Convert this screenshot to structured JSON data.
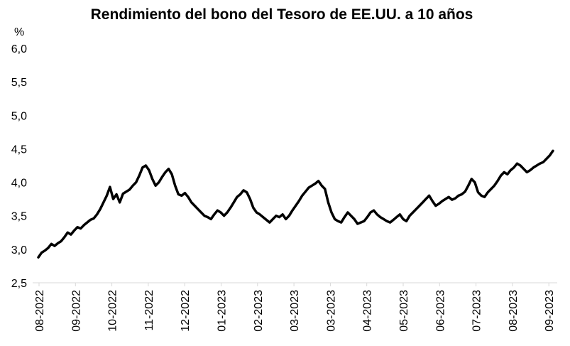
{
  "chart_data": {
    "type": "line",
    "title": "Rendimiento del bono del Tesoro de EE.UU. a 10 años",
    "ylabel": "%",
    "xlabel": "",
    "ylim": [
      2.5,
      6.0
    ],
    "yticks": [
      "2,5",
      "3,0",
      "3,5",
      "4,0",
      "4,5",
      "5,0",
      "5,5",
      "6,0"
    ],
    "ytick_values": [
      2.5,
      3.0,
      3.5,
      4.0,
      4.5,
      5.0,
      5.5,
      6.0
    ],
    "xticks": [
      "08-2022",
      "09-2022",
      "10-2022",
      "11-2022",
      "12-2022",
      "01-2023",
      "02-2023",
      "03-2023",
      "03-2023",
      "04-2023",
      "05-2023",
      "06-2023",
      "07-2023",
      "08-2023",
      "09-2023"
    ],
    "grid": false,
    "legend": "none",
    "line_color": "#000000",
    "series": [
      {
        "values": [
          2.88,
          2.95,
          2.98,
          3.02,
          3.08,
          3.05,
          3.09,
          3.12,
          3.18,
          3.25,
          3.22,
          3.28,
          3.33,
          3.31,
          3.36,
          3.4,
          3.44,
          3.46,
          3.52,
          3.6,
          3.7,
          3.8,
          3.93,
          3.75,
          3.82,
          3.7,
          3.83,
          3.86,
          3.89,
          3.95,
          4.0,
          4.1,
          4.22,
          4.25,
          4.18,
          4.05,
          3.95,
          4.0,
          4.08,
          4.15,
          4.2,
          4.12,
          3.95,
          3.82,
          3.8,
          3.84,
          3.78,
          3.7,
          3.65,
          3.6,
          3.55,
          3.5,
          3.48,
          3.45,
          3.52,
          3.58,
          3.55,
          3.5,
          3.55,
          3.62,
          3.7,
          3.78,
          3.82,
          3.88,
          3.85,
          3.75,
          3.62,
          3.55,
          3.52,
          3.48,
          3.44,
          3.4,
          3.45,
          3.5,
          3.48,
          3.52,
          3.45,
          3.5,
          3.58,
          3.65,
          3.72,
          3.8,
          3.86,
          3.92,
          3.95,
          3.98,
          4.02,
          3.95,
          3.9,
          3.7,
          3.55,
          3.45,
          3.42,
          3.4,
          3.48,
          3.55,
          3.5,
          3.45,
          3.38,
          3.4,
          3.42,
          3.48,
          3.55,
          3.58,
          3.52,
          3.48,
          3.45,
          3.42,
          3.4,
          3.44,
          3.48,
          3.52,
          3.45,
          3.42,
          3.5,
          3.55,
          3.6,
          3.65,
          3.7,
          3.75,
          3.8,
          3.72,
          3.65,
          3.68,
          3.72,
          3.75,
          3.78,
          3.74,
          3.76,
          3.8,
          3.82,
          3.86,
          3.95,
          4.05,
          4.0,
          3.85,
          3.8,
          3.78,
          3.85,
          3.9,
          3.95,
          4.02,
          4.1,
          4.15,
          4.12,
          4.18,
          4.22,
          4.28,
          4.25,
          4.2,
          4.15,
          4.18,
          4.22,
          4.25,
          4.28,
          4.3,
          4.35,
          4.4,
          4.47
        ]
      }
    ]
  }
}
